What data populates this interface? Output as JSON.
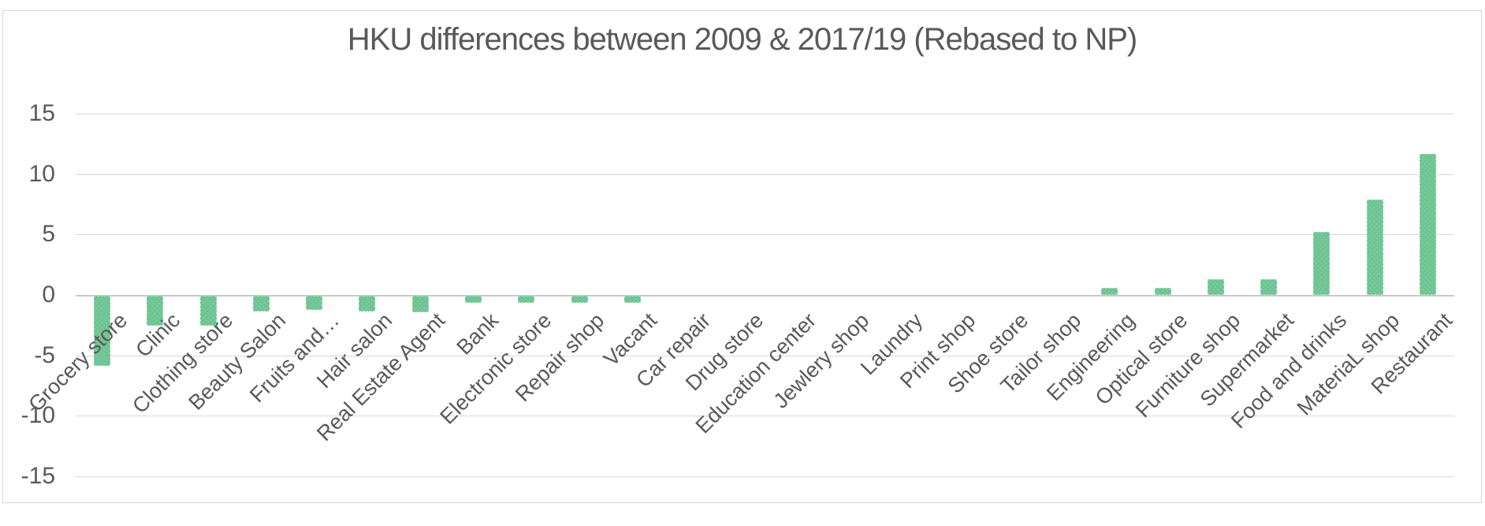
{
  "chart_data": {
    "type": "bar",
    "title": "HKU differences between 2009 & 2017/19 (Rebased to NP)",
    "categories": [
      "Grocery store",
      "Clinic",
      "Clothing store",
      "Beauty Salon",
      "Fruits and…",
      "Hair salon",
      "Real Estate Agent",
      "Bank",
      "Electronic store",
      "Repair shop",
      "Vacant",
      "Car repair",
      "Drug store",
      "Education center",
      "Jewlery shop",
      "Laundry",
      "Print shop",
      "Shoe store",
      "Tailor shop",
      "Engineering",
      "Optical store",
      "Furniture shop",
      "Supermarket",
      "Food and drinks",
      "MateriaL shop",
      "Restaurant"
    ],
    "values": [
      -5.8,
      -2.5,
      -2.5,
      -1.3,
      -1.2,
      -1.3,
      -1.4,
      -0.6,
      -0.6,
      -0.6,
      -0.6,
      0,
      0,
      0,
      0,
      0,
      0,
      0,
      0,
      0.6,
      0.6,
      1.3,
      1.3,
      5.2,
      7.9,
      11.7
    ],
    "xlabel": "",
    "ylabel": "",
    "ylim": [
      -15,
      15
    ],
    "yticks": [
      15,
      10,
      5,
      0,
      -5,
      -10,
      -15
    ],
    "grid": true,
    "legend": "none",
    "colors": {
      "bar_fill": "#6ec492",
      "bar_border": "#a9ddbf",
      "gridline": "#d9d9d9",
      "text": "#595959",
      "frame_border": "#d7d7d7"
    }
  }
}
